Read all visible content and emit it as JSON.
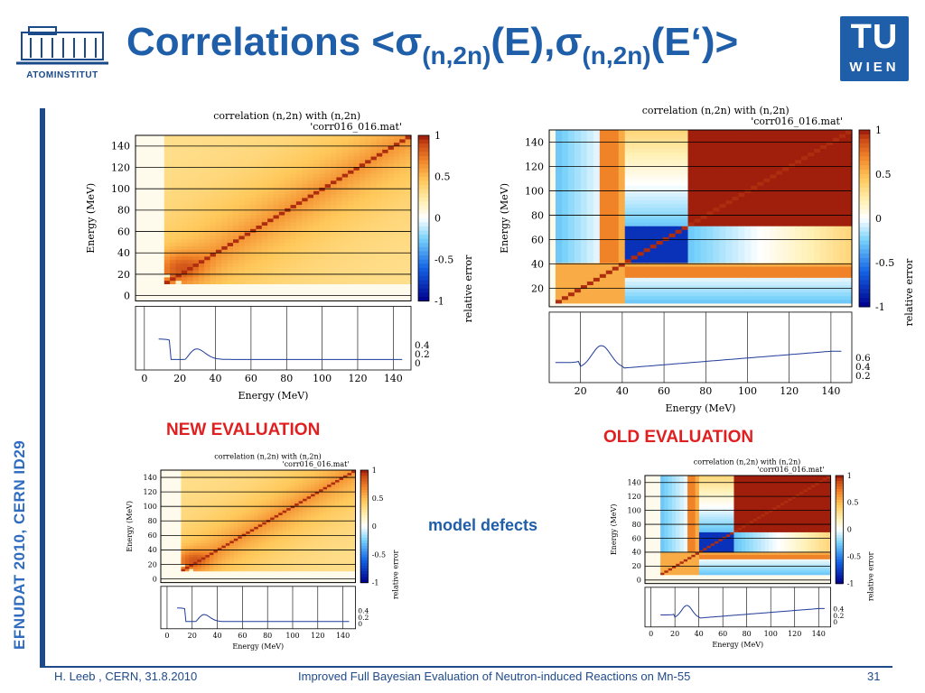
{
  "header": {
    "title_prefix": "Correlations <",
    "sigma": "σ",
    "sub": "(n,2n)",
    "e1": "(E),",
    "e2": "(E‘)>",
    "logo_left_text": "ATOMINSTITUT",
    "logo_right_top": "TU",
    "logo_right_bottom": "WIEN"
  },
  "side_text": "EFNUDAT 2010, CERN    ID29",
  "labels": {
    "new": "NEW EVALUATION",
    "old": "OLD EVALUATION",
    "model": "model defects"
  },
  "footer": {
    "left": "H. Leeb , CERN, 31.8.2010",
    "center": "Improved Full Bayesian Evaluation of Neutron-induced Reactions on Mn-55",
    "page": "31"
  },
  "plot_text": {
    "title1": "correlation (n,2n) with (n,2n)",
    "title2": "'corr016_016.mat'",
    "xlabel": "Energy (MeV)",
    "ylabel": "Energy (MeV)",
    "colorbar_label": "relative error"
  },
  "chart_data": [
    {
      "type": "heatmap",
      "name": "new-evaluation-large",
      "title": "correlation (n,2n) with (n,2n) 'corr016_016.mat'",
      "xlabel": "Energy (MeV)",
      "ylabel": "Energy (MeV)",
      "xticks": [
        0,
        20,
        40,
        60,
        80,
        100,
        120,
        140
      ],
      "yticks": [
        0,
        20,
        40,
        60,
        80,
        100,
        120,
        140
      ],
      "colorbar_ticks": [
        -1,
        -0.5,
        0,
        0.5,
        1
      ],
      "relerr_ticks": [
        0,
        0.2,
        0.4
      ]
    },
    {
      "type": "heatmap",
      "name": "old-evaluation-large",
      "title": "correlation (n,2n) with (n,2n) 'corr016_016.mat'",
      "xlabel": "Energy (MeV)",
      "ylabel": "Energy (MeV)",
      "xticks": [
        20,
        40,
        60,
        80,
        100,
        120,
        140
      ],
      "yticks": [
        20,
        40,
        60,
        80,
        100,
        120,
        140
      ],
      "colorbar_ticks": [
        -1,
        -0.5,
        0,
        0.5,
        1
      ],
      "relerr_ticks": [
        0.2,
        0.4,
        0.6
      ]
    },
    {
      "type": "heatmap",
      "name": "new-evaluation-small",
      "title": "correlation (n,2n) with (n,2n) 'corr016_016.mat'",
      "xlabel": "Energy (MeV)",
      "ylabel": "Energy (MeV)",
      "xticks": [
        0,
        20,
        40,
        60,
        80,
        100,
        120,
        140
      ],
      "yticks": [
        0,
        20,
        40,
        60,
        80,
        100,
        120,
        140
      ],
      "colorbar_ticks": [
        -1,
        -0.5,
        0,
        0.5,
        1
      ],
      "relerr_ticks": [
        0,
        0.2,
        0.4
      ]
    },
    {
      "type": "heatmap",
      "name": "old-evaluation-small",
      "title": "correlation (n,2n) with (n,2n) 'corr016_016.mat'",
      "xlabel": "Energy (MeV)",
      "ylabel": "Energy (MeV)",
      "xticks": [
        0,
        20,
        40,
        60,
        80,
        100,
        120,
        140
      ],
      "yticks": [
        0,
        20,
        40,
        60,
        80,
        100,
        120,
        140
      ],
      "colorbar_ticks": [
        -1,
        -0.5,
        0,
        0.5,
        1
      ],
      "relerr_ticks": [
        0,
        0.2,
        0.4
      ]
    }
  ],
  "colors": {
    "title_blue": "#1f5ea8",
    "accent_red": "#e02020",
    "bar_blue": "#1f4a8a"
  }
}
